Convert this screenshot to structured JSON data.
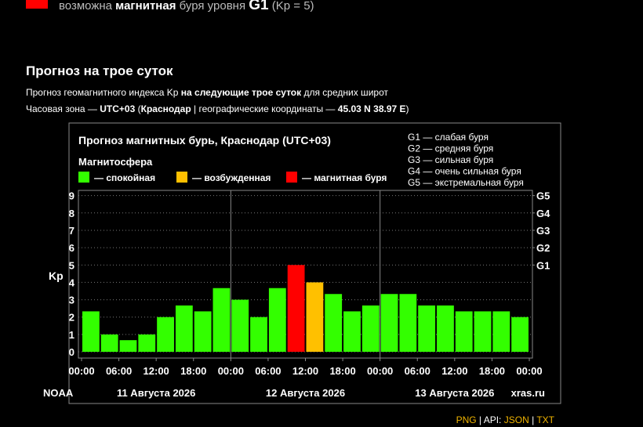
{
  "alert": {
    "text1": "возможна ",
    "text2": "магнитная",
    "text3": " буря уровня ",
    "level": "G1",
    "text4": " (Kp = 5)"
  },
  "section_title": "Прогноз на трое суток",
  "description": {
    "line1": [
      "Прогноз геомагнитного индекса Kp ",
      "на следующие трое суток",
      " для средних широт"
    ],
    "line2": [
      "Часовая зона — ",
      "UTC+03",
      " (",
      "Краснодар",
      " | географические координаты — ",
      "45.03 N 38.97 E",
      ")"
    ]
  },
  "chart_data": {
    "type": "bar",
    "title": "Прогноз магнитных бурь, Краснодар (UTC+03)",
    "legend_title": "Магнитосфера",
    "legend": [
      {
        "name": "— спокойная",
        "color": "#33ff00"
      },
      {
        "name": "— возбужденная",
        "color": "#ffc000"
      },
      {
        "name": "— магнитная буря",
        "color": "#ff0000"
      }
    ],
    "g_legend": [
      "G1 — слабая буря",
      "G2 — средняя буря",
      "G3 — сильная буря",
      "G4 — очень сильная буря",
      "G5 — экстремальная буря"
    ],
    "x": [
      0,
      3,
      6,
      9,
      12,
      15,
      18,
      21,
      24,
      27,
      30,
      33,
      36,
      39,
      42,
      45,
      48,
      51,
      54,
      57,
      60,
      63,
      66,
      69
    ],
    "values": [
      2.33,
      1.0,
      0.67,
      1.0,
      2.0,
      2.67,
      2.33,
      3.67,
      3.0,
      2.0,
      3.67,
      5.0,
      4.0,
      3.33,
      2.33,
      2.67,
      3.33,
      3.33,
      2.67,
      2.67,
      2.33,
      2.33,
      2.33,
      2.0
    ],
    "colors": [
      "#33ff00",
      "#33ff00",
      "#33ff00",
      "#33ff00",
      "#33ff00",
      "#33ff00",
      "#33ff00",
      "#33ff00",
      "#33ff00",
      "#33ff00",
      "#33ff00",
      "#ff0000",
      "#ffc000",
      "#33ff00",
      "#33ff00",
      "#33ff00",
      "#33ff00",
      "#33ff00",
      "#33ff00",
      "#33ff00",
      "#33ff00",
      "#33ff00",
      "#33ff00",
      "#33ff00"
    ],
    "xlim": [
      0,
      72
    ],
    "xticks": [
      {
        "value": 0,
        "label": "00:00"
      },
      {
        "value": 6,
        "label": "06:00"
      },
      {
        "value": 12,
        "label": "12:00"
      },
      {
        "value": 18,
        "label": "18:00"
      },
      {
        "value": 24,
        "label": "00:00"
      },
      {
        "value": 30,
        "label": "06:00"
      },
      {
        "value": 36,
        "label": "12:00"
      },
      {
        "value": 42,
        "label": "18:00"
      },
      {
        "value": 48,
        "label": "00:00"
      },
      {
        "value": 54,
        "label": "06:00"
      },
      {
        "value": 60,
        "label": "12:00"
      },
      {
        "value": 66,
        "label": "18:00"
      },
      {
        "value": 72,
        "label": "00:00"
      }
    ],
    "ylim": [
      -0.36,
      9.3
    ],
    "yticks": [
      0,
      1,
      2,
      3,
      4,
      5,
      6,
      7,
      8,
      9
    ],
    "y2lim": [
      -0.36,
      9.3
    ],
    "y2ticks": [
      {
        "value": 5,
        "label": "G1"
      },
      {
        "value": 6,
        "label": "G2"
      },
      {
        "value": 7,
        "label": "G3"
      },
      {
        "value": 8,
        "label": "G4"
      },
      {
        "value": 9,
        "label": "G5"
      }
    ],
    "ylabel": "Kp",
    "grid": true,
    "days": [
      "11 Августа 2026",
      "12 Августа 2026",
      "13 Августа 2026"
    ],
    "source": "NOAA",
    "site": "xras.ru"
  },
  "links": [
    "PNG",
    " | API: ",
    "JSON",
    " | ",
    "TXT"
  ]
}
